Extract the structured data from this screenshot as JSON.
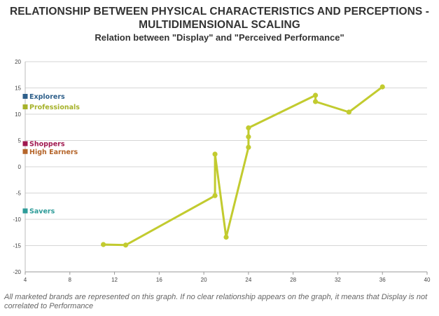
{
  "chart_data": {
    "type": "line",
    "title": "RELATIONSHIP BETWEEN PHYSICAL CHARACTERISTICS AND PERCEPTIONS - MULTIDIMENSIONAL SCALING",
    "subtitle": "Relation between \"Display\" and \"Perceived Performance\"",
    "xlabel": "",
    "ylabel": "",
    "xlim": [
      4,
      40
    ],
    "ylim": [
      -20,
      20
    ],
    "xticks": [
      4,
      8,
      12,
      16,
      20,
      24,
      28,
      32,
      36,
      40
    ],
    "yticks": [
      -20,
      -15,
      -10,
      -5,
      0,
      5,
      10,
      15,
      20
    ],
    "grid": "horizontal",
    "series": [
      {
        "color": "#c2cb2f",
        "points": [
          [
            11,
            -14.8
          ],
          [
            13,
            -14.9
          ],
          [
            21,
            -5.5
          ],
          [
            21,
            2.4
          ],
          [
            22,
            -13.4
          ],
          [
            24,
            3.7
          ],
          [
            24,
            5.7
          ],
          [
            24,
            7.4
          ],
          [
            30,
            13.6
          ],
          [
            30,
            12.4
          ],
          [
            33,
            10.4
          ],
          [
            36,
            15.2
          ]
        ]
      }
    ],
    "segment_markers": [
      {
        "label": "Explorers",
        "y": 13.4,
        "color": "#2e5f8a"
      },
      {
        "label": "Professionals",
        "y": 11.4,
        "color": "#a6b22a"
      },
      {
        "label": "Shoppers",
        "y": 4.4,
        "color": "#a0184f"
      },
      {
        "label": "High Earners",
        "y": 2.9,
        "color": "#b5652a"
      },
      {
        "label": "Savers",
        "y": -8.4,
        "color": "#2e9c99"
      }
    ]
  },
  "footnote": "All marketed brands are represented on this graph. If no clear relationship appears on the graph, it means that Display is not correlated to Performance"
}
